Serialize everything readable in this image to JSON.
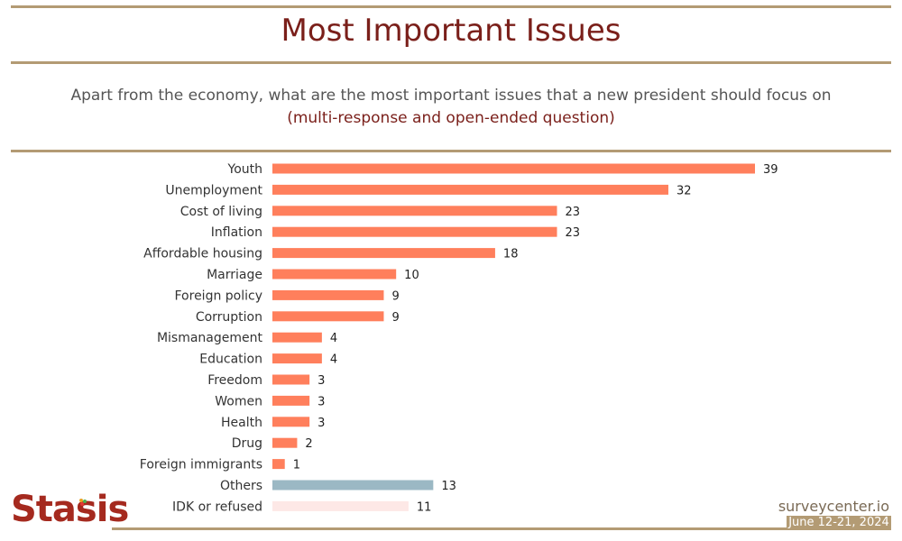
{
  "title": "Most Important Issues",
  "subtitle": "Apart from the economy, what are the most important issues that a new president should focus on",
  "subtitle_note": "(multi-response and open-ended question)",
  "footer": {
    "brand": "Stasis",
    "site": "surveycenter.io",
    "date": "June 12-21, 2024"
  },
  "colors": {
    "primary_bar": "#ff7f5c",
    "others_bar": "#9bb8c4",
    "idk_bar": "#fde8e6",
    "title": "#7a1f1a",
    "rule": "#b39b74"
  },
  "chart_data": {
    "type": "bar",
    "orientation": "horizontal",
    "title": "Most Important Issues",
    "xlabel": "",
    "ylabel": "",
    "xlim": [
      0,
      39
    ],
    "grid": false,
    "categories": [
      "Youth",
      "Unemployment",
      "Cost of living",
      "Inflation",
      "Affordable housing",
      "Marriage",
      "Foreign policy",
      "Corruption",
      "Mismanagement",
      "Education",
      "Freedom",
      "Women",
      "Health",
      "Drug",
      "Foreign immigrants",
      "Others",
      "IDK or refused"
    ],
    "values": [
      39,
      32,
      23,
      23,
      18,
      10,
      9,
      9,
      4,
      4,
      3,
      3,
      3,
      2,
      1,
      13,
      11
    ],
    "bar_colors": [
      "primary",
      "primary",
      "primary",
      "primary",
      "primary",
      "primary",
      "primary",
      "primary",
      "primary",
      "primary",
      "primary",
      "primary",
      "primary",
      "primary",
      "primary",
      "others",
      "idk"
    ]
  }
}
